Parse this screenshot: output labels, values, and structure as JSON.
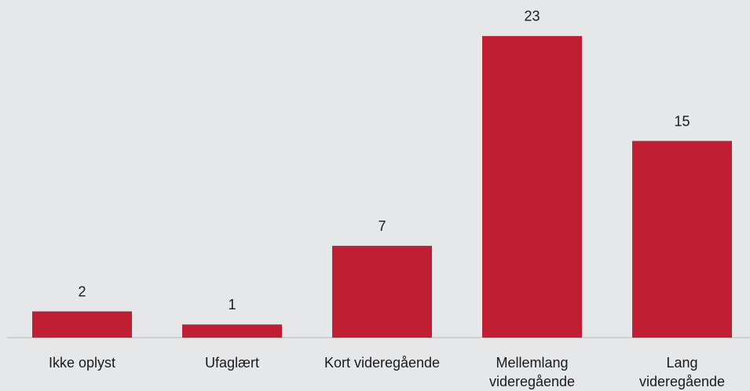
{
  "chart_data": {
    "type": "bar",
    "categories": [
      "Ikke oplyst",
      "Ufaglært",
      "Kort videregående",
      "Mellemlang videregående",
      "Lang videregående"
    ],
    "values": [
      2,
      1,
      7,
      23,
      15
    ],
    "color": "#c01f33"
  }
}
